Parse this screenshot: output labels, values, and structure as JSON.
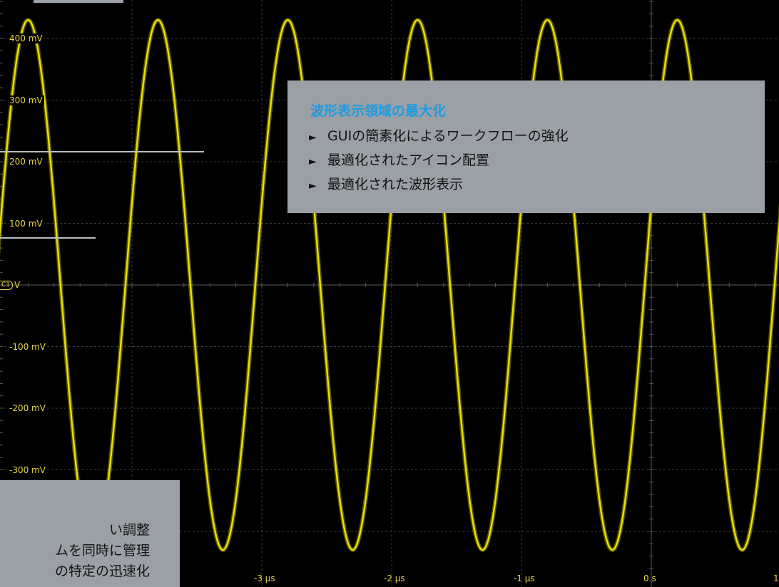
{
  "colors": {
    "background": "#000000",
    "waveform": "#e8e000",
    "grid": "#3a3a3a",
    "label": "#e8d64a",
    "panel": "#9aa0a5",
    "panel_title": "#1d9be0",
    "panel_text": "#141414"
  },
  "chart_data": {
    "type": "line",
    "title": "",
    "xlabel": "",
    "ylabel": "",
    "x_unit": "µs",
    "y_unit": "mV",
    "xlim": [
      -4.94,
      1.0
    ],
    "ylim": [
      -450,
      450
    ],
    "grid": true,
    "y_ticks": [
      {
        "value": 400,
        "label": "400 mV"
      },
      {
        "value": 300,
        "label": "300 mV"
      },
      {
        "value": 200,
        "label": "200 mV"
      },
      {
        "value": 100,
        "label": "100 mV"
      },
      {
        "value": -100,
        "label": "-100 mV"
      },
      {
        "value": -200,
        "label": "-200 mV"
      },
      {
        "value": -300,
        "label": "-300 mV"
      }
    ],
    "x_ticks": [
      {
        "value": -3,
        "label": "-3 µs"
      },
      {
        "value": -2,
        "label": "-2 µs"
      },
      {
        "value": -1,
        "label": "-1 µs"
      },
      {
        "value": 0,
        "label": "0 s"
      },
      {
        "value": 1,
        "label": "1"
      }
    ],
    "series": [
      {
        "signal": "sine",
        "amplitude_mv": 430,
        "period_us": 1.0,
        "peak_at_us": 0.2,
        "color": "#e8e000"
      }
    ]
  },
  "channel_marker": {
    "tag": "C1",
    "unit": "V"
  },
  "info_panel_main": {
    "title": "波形表示領域の最大化",
    "bullet": "►",
    "items": [
      "GUIの簡素化によるワークフローの強化",
      "最適化されたアイコン配置",
      "最適化された波形表示"
    ]
  },
  "info_panel_secondary": {
    "items": [
      "い調整",
      "ムを同時に管理",
      "の特定の迅速化"
    ]
  }
}
